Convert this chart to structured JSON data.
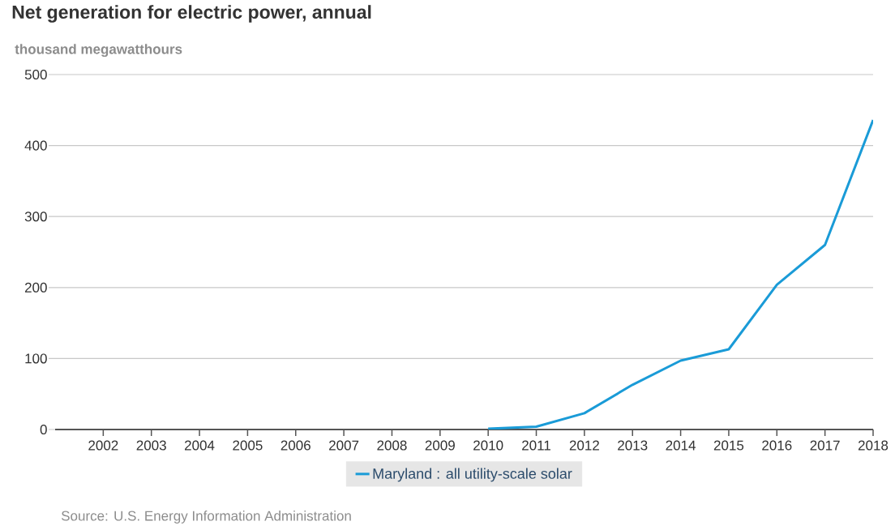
{
  "chart_data": {
    "type": "line",
    "title": "Net generation for electric power, annual",
    "ylabel": "thousand megawatthours",
    "xlim": [
      2001,
      2018
    ],
    "xticks": [
      2002,
      2003,
      2004,
      2005,
      2006,
      2007,
      2008,
      2009,
      2010,
      2011,
      2012,
      2013,
      2014,
      2015,
      2016,
      2017,
      2018
    ],
    "ylim": [
      0,
      500
    ],
    "yticks": [
      0,
      100,
      200,
      300,
      400,
      500
    ],
    "grid": "y",
    "legend": "bottom",
    "series": [
      {
        "name": "Maryland : all utility-scale solar",
        "color": "#1a9bd7",
        "x": [
          2010,
          2011,
          2012,
          2013,
          2014,
          2015,
          2016,
          2017,
          2018
        ],
        "values": [
          1,
          4,
          23,
          63,
          97,
          113,
          204,
          260,
          436
        ]
      }
    ],
    "annotations": [
      "Source: U.S. Energy Information Administration"
    ]
  }
}
